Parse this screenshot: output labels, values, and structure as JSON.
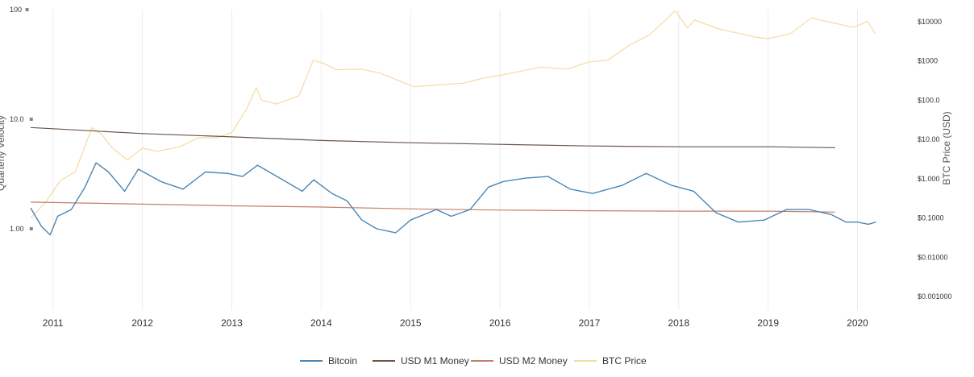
{
  "chart_data": {
    "type": "line",
    "title": "",
    "x_range": [
      "2010-10",
      "2020-03"
    ],
    "x_ticks": [
      "2011",
      "2012",
      "2013",
      "2014",
      "2015",
      "2016",
      "2017",
      "2018",
      "2019",
      "2020"
    ],
    "left_axis": {
      "label": "Quarterly Velocity",
      "scale": "log",
      "range": [
        0.1,
        100
      ],
      "ticks": [
        "100",
        "10.0",
        "1.00"
      ]
    },
    "right_axis": {
      "label": "BTC Price (USD)",
      "scale": "log",
      "range": [
        0.001,
        10000
      ],
      "ticks": [
        "$10000",
        "$1000",
        "$100.0",
        "$10.00",
        "$1.000",
        "$0.1000",
        "$0.01000",
        "$0.001000"
      ]
    },
    "grid": {
      "vertical": true,
      "horizontal": false
    },
    "legend": {
      "placement": "bottom-center"
    },
    "series": [
      {
        "name": "Bitcoin",
        "axis": "left",
        "color": "#4b86b4",
        "points": [
          [
            "2010-10-01",
            1.55
          ],
          [
            "2010-11-15",
            1.05
          ],
          [
            "2010-12-20",
            0.88
          ],
          [
            "2011-01-20",
            1.3
          ],
          [
            "2011-03-15",
            1.5
          ],
          [
            "2011-05-10",
            2.4
          ],
          [
            "2011-06-25",
            4.0
          ],
          [
            "2011-08-15",
            3.3
          ],
          [
            "2011-10-20",
            2.2
          ],
          [
            "2011-12-15",
            3.5
          ],
          [
            "2012-03-15",
            2.7
          ],
          [
            "2012-06-15",
            2.3
          ],
          [
            "2012-09-15",
            3.3
          ],
          [
            "2012-12-15",
            3.2
          ],
          [
            "2013-02-15",
            3.0
          ],
          [
            "2013-04-15",
            3.8
          ],
          [
            "2013-07-15",
            2.9
          ],
          [
            "2013-10-15",
            2.2
          ],
          [
            "2013-12-01",
            2.8
          ],
          [
            "2014-02-15",
            2.1
          ],
          [
            "2014-04-15",
            1.8
          ],
          [
            "2014-06-15",
            1.2
          ],
          [
            "2014-08-15",
            1.0
          ],
          [
            "2014-11-01",
            0.92
          ],
          [
            "2015-01-01",
            1.2
          ],
          [
            "2015-04-15",
            1.5
          ],
          [
            "2015-06-15",
            1.3
          ],
          [
            "2015-09-01",
            1.5
          ],
          [
            "2015-11-15",
            2.4
          ],
          [
            "2016-01-15",
            2.7
          ],
          [
            "2016-04-15",
            2.9
          ],
          [
            "2016-07-15",
            3.0
          ],
          [
            "2016-10-15",
            2.3
          ],
          [
            "2017-01-15",
            2.1
          ],
          [
            "2017-05-15",
            2.5
          ],
          [
            "2017-08-20",
            3.2
          ],
          [
            "2017-12-01",
            2.5
          ],
          [
            "2018-03-01",
            2.2
          ],
          [
            "2018-06-01",
            1.4
          ],
          [
            "2018-09-01",
            1.15
          ],
          [
            "2018-12-15",
            1.2
          ],
          [
            "2019-03-15",
            1.5
          ],
          [
            "2019-06-15",
            1.5
          ],
          [
            "2019-09-15",
            1.35
          ],
          [
            "2019-11-15",
            1.15
          ],
          [
            "2020-01-01",
            1.15
          ],
          [
            "2020-02-15",
            1.1
          ],
          [
            "2020-03-15",
            1.15
          ]
        ]
      },
      {
        "name": "USD M1 Money",
        "axis": "left",
        "color": "#6b5548",
        "points": [
          [
            "2010-10-01",
            8.4
          ],
          [
            "2012-01-01",
            7.4
          ],
          [
            "2013-01-01",
            6.9
          ],
          [
            "2014-01-01",
            6.4
          ],
          [
            "2015-01-01",
            6.1
          ],
          [
            "2016-01-01",
            5.9
          ],
          [
            "2017-01-01",
            5.7
          ],
          [
            "2018-01-01",
            5.6
          ],
          [
            "2019-01-01",
            5.6
          ],
          [
            "2019-10-01",
            5.5
          ]
        ]
      },
      {
        "name": "USD M2 Money",
        "axis": "left",
        "color": "#c47f6a",
        "points": [
          [
            "2010-10-01",
            1.75
          ],
          [
            "2012-01-01",
            1.68
          ],
          [
            "2013-01-01",
            1.62
          ],
          [
            "2014-01-01",
            1.58
          ],
          [
            "2015-01-01",
            1.52
          ],
          [
            "2016-01-01",
            1.48
          ],
          [
            "2017-01-01",
            1.46
          ],
          [
            "2018-01-01",
            1.45
          ],
          [
            "2019-01-01",
            1.45
          ],
          [
            "2019-10-01",
            1.42
          ]
        ]
      },
      {
        "name": "BTC Price",
        "axis": "right",
        "color": "#f7d9a2",
        "points": [
          [
            "2010-10-01",
            0.1
          ],
          [
            "2010-12-01",
            0.25
          ],
          [
            "2011-02-01",
            0.9
          ],
          [
            "2011-04-01",
            1.5
          ],
          [
            "2011-06-08",
            20
          ],
          [
            "2011-07-15",
            14
          ],
          [
            "2011-09-01",
            6
          ],
          [
            "2011-11-01",
            3
          ],
          [
            "2012-01-01",
            6
          ],
          [
            "2012-03-01",
            5
          ],
          [
            "2012-06-01",
            6.5
          ],
          [
            "2012-08-15",
            11
          ],
          [
            "2012-11-01",
            11
          ],
          [
            "2013-01-01",
            15
          ],
          [
            "2013-03-01",
            60
          ],
          [
            "2013-04-10",
            210
          ],
          [
            "2013-05-01",
            100
          ],
          [
            "2013-07-01",
            80
          ],
          [
            "2013-10-01",
            130
          ],
          [
            "2013-11-30",
            1050
          ],
          [
            "2014-01-15",
            850
          ],
          [
            "2014-03-01",
            600
          ],
          [
            "2014-06-15",
            620
          ],
          [
            "2014-09-01",
            480
          ],
          [
            "2015-01-15",
            220
          ],
          [
            "2015-04-01",
            240
          ],
          [
            "2015-08-01",
            270
          ],
          [
            "2015-11-05",
            380
          ],
          [
            "2016-01-01",
            430
          ],
          [
            "2016-06-15",
            700
          ],
          [
            "2016-10-01",
            620
          ],
          [
            "2017-01-01",
            950
          ],
          [
            "2017-03-15",
            1050
          ],
          [
            "2017-06-15",
            2600
          ],
          [
            "2017-09-01",
            4500
          ],
          [
            "2017-12-17",
            19000
          ],
          [
            "2018-02-06",
            7000
          ],
          [
            "2018-03-05",
            11000
          ],
          [
            "2018-06-15",
            6500
          ],
          [
            "2018-11-15",
            4000
          ],
          [
            "2019-01-01",
            3700
          ],
          [
            "2019-04-01",
            5000
          ],
          [
            "2019-06-26",
            12500
          ],
          [
            "2019-09-01",
            10000
          ],
          [
            "2019-12-15",
            7200
          ],
          [
            "2020-02-12",
            10200
          ],
          [
            "2020-03-12",
            5000
          ]
        ]
      }
    ]
  }
}
